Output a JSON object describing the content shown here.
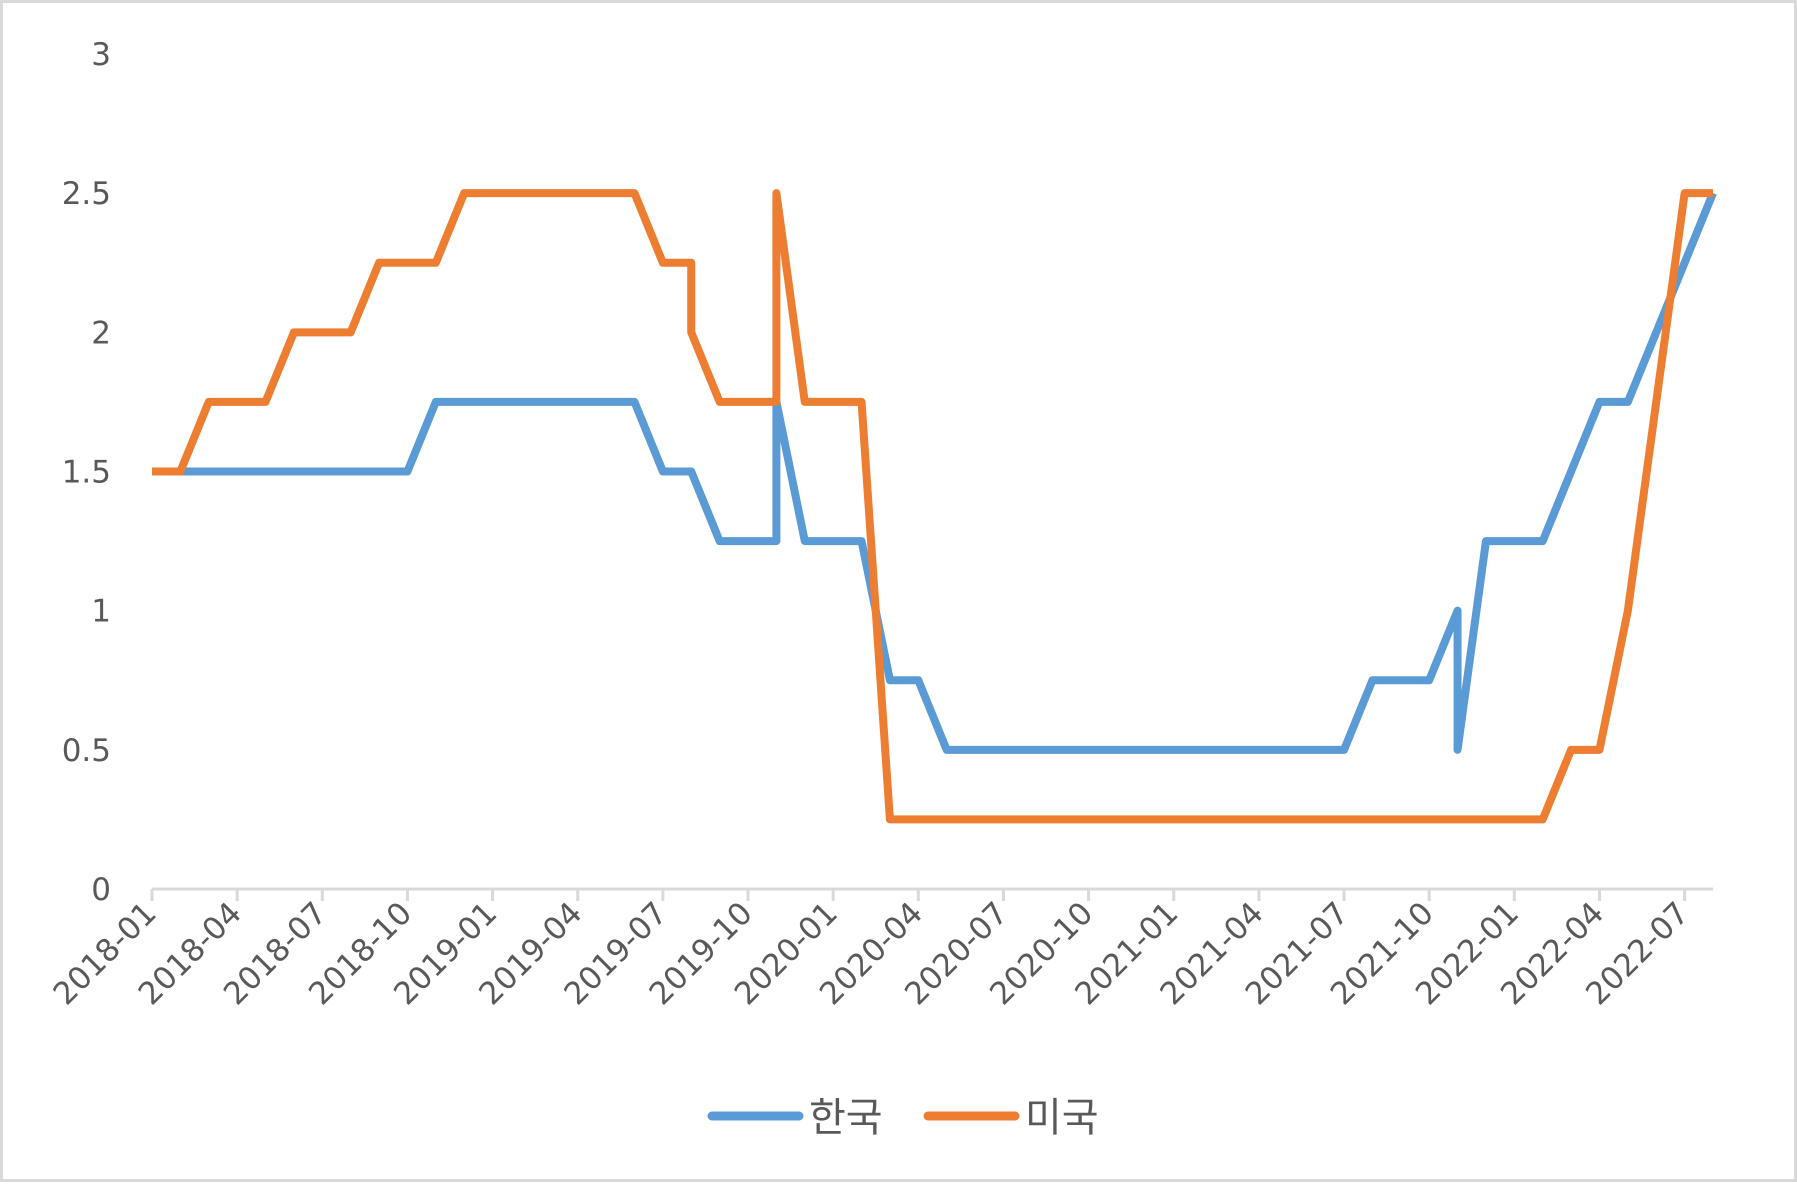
{
  "chart_data": {
    "type": "line",
    "title": "",
    "xlabel": "",
    "ylabel": "",
    "ylim": [
      0,
      3
    ],
    "y_ticks": [
      0,
      0.5,
      1,
      1.5,
      2,
      2.5,
      3
    ],
    "grid": false,
    "legend_position": "bottom",
    "x_tick_labels": [
      "2018-01",
      "2018-04",
      "2018-07",
      "2018-10",
      "2019-01",
      "2019-04",
      "2019-07",
      "2019-10",
      "2020-01",
      "2020-04",
      "2020-07",
      "2020-10",
      "2021-01",
      "2021-04",
      "2021-07",
      "2021-10",
      "2022-01",
      "2022-04",
      "2022-07"
    ],
    "x": [
      "2018-01",
      "2018-02",
      "2018-03",
      "2018-04",
      "2018-05",
      "2018-06",
      "2018-07",
      "2018-08",
      "2018-09",
      "2018-10",
      "2018-11",
      "2018-12",
      "2019-01",
      "2019-02",
      "2019-03",
      "2019-04",
      "2019-05",
      "2019-06",
      "2019-07",
      "2019-08",
      "2019-09",
      "2019-10",
      "2019-11",
      "2019-12",
      "2020-01",
      "2020-02",
      "2020-03",
      "2020-04",
      "2020-05",
      "2020-06",
      "2020-07",
      "2020-08",
      "2020-09",
      "2020-10",
      "2020-11",
      "2020-12",
      "2021-01",
      "2021-02",
      "2021-03",
      "2021-04",
      "2021-05",
      "2021-06",
      "2021-07",
      "2021-08",
      "2021-09",
      "2021-10",
      "2021-11",
      "2021-12",
      "2022-01",
      "2022-02",
      "2022-03",
      "2022-04",
      "2022-05",
      "2022-06",
      "2022-07",
      "2022-08"
    ],
    "series": [
      {
        "name": "한국",
        "color": "#5b9bd5",
        "points": [
          [
            "2018-01",
            1.5
          ],
          [
            "2018-02",
            1.5
          ],
          [
            "2018-03",
            1.5
          ],
          [
            "2018-04",
            1.5
          ],
          [
            "2018-05",
            1.5
          ],
          [
            "2018-06",
            1.5
          ],
          [
            "2018-07",
            1.5
          ],
          [
            "2018-08",
            1.5
          ],
          [
            "2018-09",
            1.5
          ],
          [
            "2018-10",
            1.5
          ],
          [
            "2018-11",
            1.75
          ],
          [
            "2018-12",
            1.75
          ],
          [
            "2019-01",
            1.75
          ],
          [
            "2019-02",
            1.75
          ],
          [
            "2019-03",
            1.75
          ],
          [
            "2019-04",
            1.75
          ],
          [
            "2019-05",
            1.75
          ],
          [
            "2019-06",
            1.75
          ],
          [
            "2019-07",
            1.5
          ],
          [
            "2019-08",
            1.5
          ],
          [
            "2019-09",
            1.25
          ],
          [
            "2019-10",
            1.25
          ],
          [
            "2019-11",
            1.25
          ],
          [
            "2019-11",
            1.75
          ],
          [
            "2019-12",
            1.25
          ],
          [
            "2020-01",
            1.25
          ],
          [
            "2020-02",
            1.25
          ],
          [
            "2020-03",
            0.75
          ],
          [
            "2020-04",
            0.75
          ],
          [
            "2020-05",
            0.5
          ],
          [
            "2020-06",
            0.5
          ],
          [
            "2020-07",
            0.5
          ],
          [
            "2020-08",
            0.5
          ],
          [
            "2020-09",
            0.5
          ],
          [
            "2020-10",
            0.5
          ],
          [
            "2020-11",
            0.5
          ],
          [
            "2020-12",
            0.5
          ],
          [
            "2021-01",
            0.5
          ],
          [
            "2021-02",
            0.5
          ],
          [
            "2021-03",
            0.5
          ],
          [
            "2021-04",
            0.5
          ],
          [
            "2021-05",
            0.5
          ],
          [
            "2021-06",
            0.5
          ],
          [
            "2021-07",
            0.5
          ],
          [
            "2021-08",
            0.75
          ],
          [
            "2021-09",
            0.75
          ],
          [
            "2021-10",
            0.75
          ],
          [
            "2021-11",
            1.0
          ],
          [
            "2021-11",
            0.5
          ],
          [
            "2021-12",
            1.25
          ],
          [
            "2022-01",
            1.25
          ],
          [
            "2022-02",
            1.25
          ],
          [
            "2022-03",
            1.5
          ],
          [
            "2022-04",
            1.75
          ],
          [
            "2022-05",
            1.75
          ],
          [
            "2022-06",
            2.0
          ],
          [
            "2022-07",
            2.25
          ],
          [
            "2022-08",
            2.5
          ]
        ]
      },
      {
        "name": "미국",
        "color": "#ed7d31",
        "points": [
          [
            "2018-01",
            1.5
          ],
          [
            "2018-02",
            1.5
          ],
          [
            "2018-03",
            1.75
          ],
          [
            "2018-04",
            1.75
          ],
          [
            "2018-05",
            1.75
          ],
          [
            "2018-06",
            2.0
          ],
          [
            "2018-07",
            2.0
          ],
          [
            "2018-08",
            2.0
          ],
          [
            "2018-09",
            2.25
          ],
          [
            "2018-10",
            2.25
          ],
          [
            "2018-11",
            2.25
          ],
          [
            "2018-12",
            2.5
          ],
          [
            "2019-01",
            2.5
          ],
          [
            "2019-02",
            2.5
          ],
          [
            "2019-03",
            2.5
          ],
          [
            "2019-04",
            2.5
          ],
          [
            "2019-05",
            2.5
          ],
          [
            "2019-06",
            2.5
          ],
          [
            "2019-07",
            2.25
          ],
          [
            "2019-08",
            2.25
          ],
          [
            "2019-08",
            2.0
          ],
          [
            "2019-09",
            1.75
          ],
          [
            "2019-10",
            1.75
          ],
          [
            "2019-11",
            1.75
          ],
          [
            "2019-11",
            2.5
          ],
          [
            "2019-12",
            1.75
          ],
          [
            "2020-01",
            1.75
          ],
          [
            "2020-02",
            1.75
          ],
          [
            "2020-03",
            0.25
          ],
          [
            "2020-04",
            0.25
          ],
          [
            "2020-05",
            0.25
          ],
          [
            "2020-06",
            0.25
          ],
          [
            "2020-07",
            0.25
          ],
          [
            "2020-08",
            0.25
          ],
          [
            "2020-09",
            0.25
          ],
          [
            "2020-10",
            0.25
          ],
          [
            "2020-11",
            0.25
          ],
          [
            "2020-12",
            0.25
          ],
          [
            "2021-01",
            0.25
          ],
          [
            "2021-02",
            0.25
          ],
          [
            "2021-03",
            0.25
          ],
          [
            "2021-04",
            0.25
          ],
          [
            "2021-05",
            0.25
          ],
          [
            "2021-06",
            0.25
          ],
          [
            "2021-07",
            0.25
          ],
          [
            "2021-08",
            0.25
          ],
          [
            "2021-09",
            0.25
          ],
          [
            "2021-10",
            0.25
          ],
          [
            "2021-11",
            0.25
          ],
          [
            "2021-12",
            0.25
          ],
          [
            "2022-01",
            0.25
          ],
          [
            "2022-02",
            0.25
          ],
          [
            "2022-03",
            0.5
          ],
          [
            "2022-04",
            0.5
          ],
          [
            "2022-05",
            1.0
          ],
          [
            "2022-06",
            1.75
          ],
          [
            "2022-07",
            2.5
          ],
          [
            "2022-08",
            2.5
          ]
        ]
      }
    ]
  }
}
